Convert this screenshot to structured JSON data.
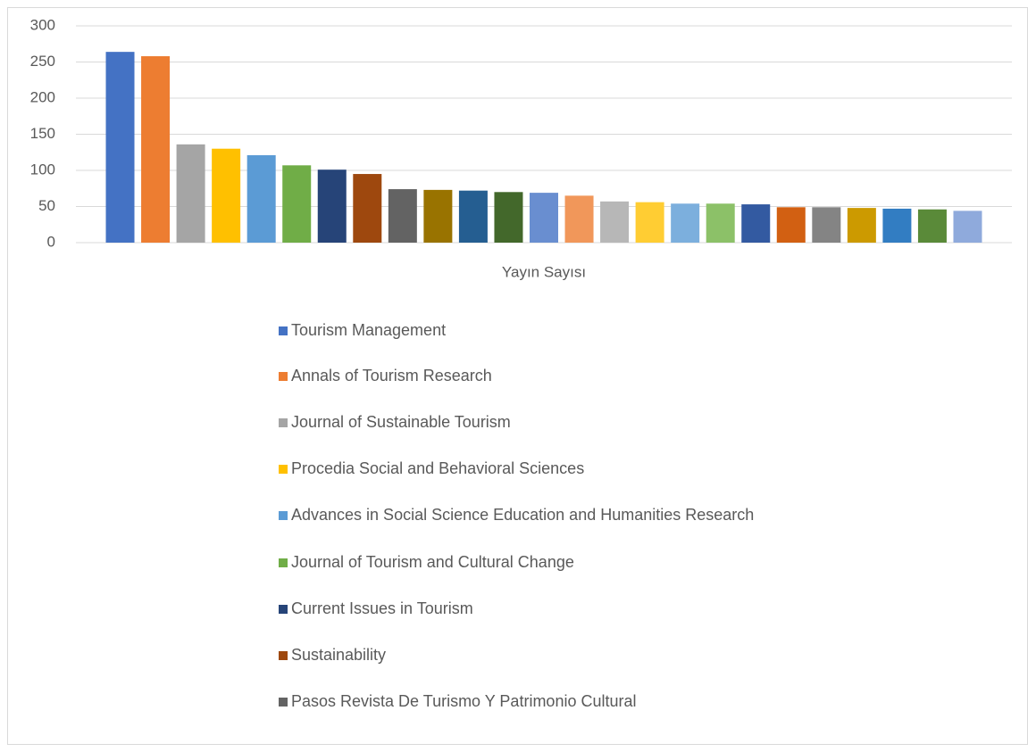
{
  "chart_data": {
    "type": "bar",
    "categories": [
      "Yayın Sayısı"
    ],
    "ylim": [
      0,
      300
    ],
    "yticks": [
      0,
      50,
      100,
      150,
      200,
      250,
      300
    ],
    "grid": true,
    "legend": "bottom",
    "series": [
      {
        "name": "Tourism Management",
        "color": "#4472c4",
        "values": [
          264
        ]
      },
      {
        "name": "Annals of Tourism Research",
        "color": "#ed7d31",
        "values": [
          258
        ]
      },
      {
        "name": "Journal of Sustainable Tourism",
        "color": "#a5a5a5",
        "values": [
          136
        ]
      },
      {
        "name": "Procedia Social and Behavioral Sciences",
        "color": "#ffc000",
        "values": [
          130
        ]
      },
      {
        "name": "Advances in Social Science Education and Humanities Research",
        "color": "#5b9bd5",
        "values": [
          121
        ]
      },
      {
        "name": "Journal of Tourism and Cultural Change",
        "color": "#70ad47",
        "values": [
          107
        ]
      },
      {
        "name": "Current Issues in Tourism",
        "color": "#264478",
        "values": [
          101
        ]
      },
      {
        "name": "Sustainability",
        "color": "#9e480e",
        "values": [
          95
        ]
      },
      {
        "name": "Pasos Revista De Turismo Y Patrimonio Cultural",
        "color": "#636363",
        "values": [
          74
        ]
      },
      {
        "name": null,
        "color": "#997300",
        "values": [
          73
        ]
      },
      {
        "name": null,
        "color": "#255e91",
        "values": [
          72
        ]
      },
      {
        "name": null,
        "color": "#43682b",
        "values": [
          70
        ]
      },
      {
        "name": null,
        "color": "#698ed0",
        "values": [
          69
        ]
      },
      {
        "name": null,
        "color": "#f1975a",
        "values": [
          65
        ]
      },
      {
        "name": null,
        "color": "#b7b7b7",
        "values": [
          57
        ]
      },
      {
        "name": null,
        "color": "#ffcd33",
        "values": [
          56
        ]
      },
      {
        "name": null,
        "color": "#7cafdd",
        "values": [
          54
        ]
      },
      {
        "name": null,
        "color": "#8cc168",
        "values": [
          54
        ]
      },
      {
        "name": null,
        "color": "#335aa1",
        "values": [
          53
        ]
      },
      {
        "name": null,
        "color": "#d26012",
        "values": [
          49
        ]
      },
      {
        "name": null,
        "color": "#848484",
        "values": [
          49
        ]
      },
      {
        "name": null,
        "color": "#cc9a00",
        "values": [
          48
        ]
      },
      {
        "name": null,
        "color": "#327dc2",
        "values": [
          47
        ]
      },
      {
        "name": null,
        "color": "#5a8a39",
        "values": [
          46
        ]
      },
      {
        "name": null,
        "color": "#8faadc",
        "values": [
          44
        ]
      }
    ]
  }
}
